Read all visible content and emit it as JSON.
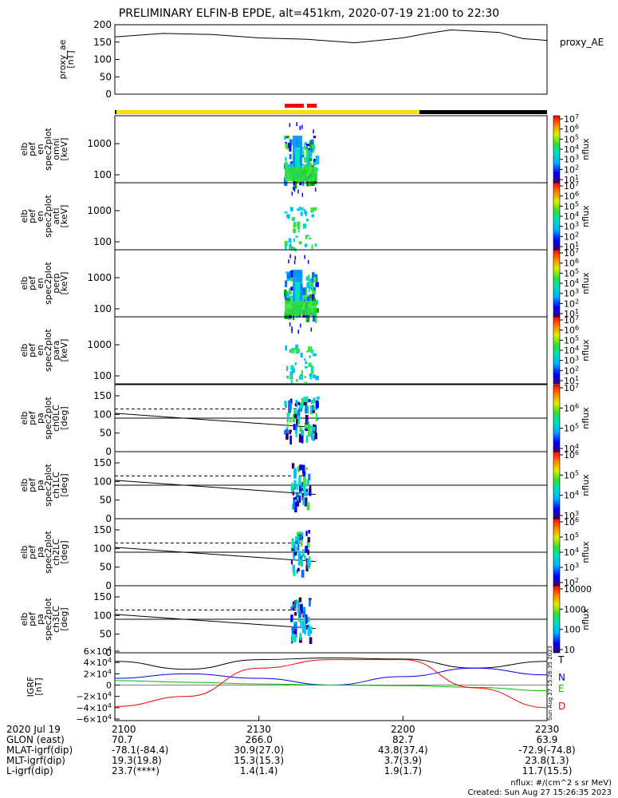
{
  "title": "PRELIMINARY ELFIN-B EPDE, alt=451km, 2020-07-19 21:00 to 22:30",
  "footer": {
    "units": "nflux: #/(cm^2 s sr MeV)",
    "created": "Created: Sun Aug 27 15:26:35 2023"
  },
  "side_stamp": "Sun Aug 27 15:26:35 2023",
  "panels": {
    "proxy_ae": {
      "ylabel_lines": [
        "proxy_ae",
        "[nT]"
      ],
      "yticks": [
        "200",
        "150",
        "100",
        "50",
        "0"
      ],
      "ylim": [
        0,
        200
      ],
      "legend": "proxy_AE"
    },
    "spectra": [
      {
        "ylabel_lines": [
          "elb",
          "pef",
          "en",
          "spec2plot",
          "omni",
          "[keV]"
        ],
        "yticks": [
          "1000",
          "100"
        ],
        "cbar_ticks": [
          "10^7",
          "10^6",
          "10^5",
          "10^4",
          "10^3",
          "10^2",
          "10^1"
        ],
        "cbar_label": "nflux"
      },
      {
        "ylabel_lines": [
          "elb",
          "pef",
          "en",
          "spec2plot",
          "anti",
          "[keV]"
        ],
        "yticks": [
          "1000",
          "100"
        ],
        "cbar_ticks": [
          "10^7",
          "10^6",
          "10^5",
          "10^4",
          "10^3",
          "10^2",
          "10^1"
        ],
        "cbar_label": "nflux"
      },
      {
        "ylabel_lines": [
          "elb",
          "pef",
          "en",
          "spec2plot",
          "perp",
          "[keV]"
        ],
        "yticks": [
          "1000",
          "100"
        ],
        "cbar_ticks": [
          "10^7",
          "10^6",
          "10^5",
          "10^4",
          "10^3",
          "10^2",
          "10^1"
        ],
        "cbar_label": "nflux"
      },
      {
        "ylabel_lines": [
          "elb",
          "pef",
          "en",
          "spec2plot",
          "para",
          "[keV]"
        ],
        "yticks": [
          "1000",
          "100"
        ],
        "cbar_ticks": [
          "10^7",
          "10^6",
          "10^5",
          "10^4",
          "10^3",
          "10^2",
          "10^1"
        ],
        "cbar_label": "nflux"
      }
    ],
    "pitch": [
      {
        "ylabel_lines": [
          "elb",
          "pef",
          "pa",
          "spec2plot",
          "ch0LC",
          "[deg]"
        ],
        "yticks": [
          "150",
          "100",
          "50",
          "0"
        ],
        "cbar_ticks": [
          "10^7",
          "10^6",
          "10^5",
          "10^4"
        ],
        "cbar_label": "nflux"
      },
      {
        "ylabel_lines": [
          "elb",
          "pef",
          "pa",
          "spec2plot",
          "ch1LC",
          "[deg]"
        ],
        "yticks": [
          "150",
          "100",
          "50",
          "0"
        ],
        "cbar_ticks": [
          "10^6",
          "10^5",
          "10^4",
          "10^3"
        ],
        "cbar_label": "nflux"
      },
      {
        "ylabel_lines": [
          "elb",
          "pef",
          "pa",
          "spec2plot",
          "ch2LC",
          "[deg]"
        ],
        "yticks": [
          "150",
          "100",
          "50",
          "0"
        ],
        "cbar_ticks": [
          "10^6",
          "10^5",
          "10^4",
          "10^3",
          "10^2"
        ],
        "cbar_label": "nflux"
      },
      {
        "ylabel_lines": [
          "elb",
          "pef",
          "pa",
          "spec2plot",
          "ch3LC",
          "[deg]"
        ],
        "yticks": [
          "150",
          "100",
          "50",
          "0"
        ],
        "cbar_ticks": [
          "10000",
          "1000",
          "100",
          "10"
        ],
        "cbar_label": "nflux"
      }
    ],
    "igrf": {
      "ylabel_lines": [
        "IGRF",
        "[nT]"
      ],
      "yticks": [
        "6×10^4",
        "4×10^4",
        "2×10^4",
        "0",
        "−2×10^4",
        "−4×10^4",
        "−6×10^4"
      ],
      "legend": [
        {
          "label": "T",
          "color": "#000000"
        },
        {
          "label": "N",
          "color": "#0000ff"
        },
        {
          "label": "E",
          "color": "#00c000"
        },
        {
          "label": "D",
          "color": "#ff0000"
        }
      ]
    }
  },
  "chart_data": [
    {
      "type": "line",
      "title": "proxy_AE",
      "x": [
        "21:00",
        "21:10",
        "21:20",
        "21:30",
        "21:40",
        "21:50",
        "22:00",
        "22:05",
        "22:10",
        "22:20",
        "22:25",
        "22:30"
      ],
      "series": [
        {
          "name": "proxy_AE",
          "values": [
            165,
            175,
            172,
            162,
            158,
            148,
            162,
            175,
            185,
            178,
            160,
            155
          ]
        }
      ],
      "ylim": [
        0,
        200
      ]
    },
    {
      "type": "line",
      "title": "IGRF",
      "x": [
        "21:00",
        "21:15",
        "21:30",
        "21:45",
        "22:00",
        "22:15",
        "22:30"
      ],
      "series": [
        {
          "name": "T",
          "values": [
            42000,
            28000,
            45000,
            48000,
            46000,
            30000,
            42000
          ]
        },
        {
          "name": "N",
          "values": [
            12000,
            20000,
            12000,
            0,
            15000,
            30000,
            18000
          ]
        },
        {
          "name": "E",
          "values": [
            8000,
            5000,
            2000,
            0,
            -1000,
            -4000,
            -10000
          ]
        },
        {
          "name": "D",
          "values": [
            -38000,
            -20000,
            30000,
            45000,
            45000,
            -5000,
            -40000
          ]
        }
      ],
      "ylim": [
        -60000,
        60000
      ]
    }
  ],
  "xaxis": {
    "rows": [
      {
        "label": "2020 Jul 19",
        "values": [
          "2100",
          "2130",
          "2200",
          "2230"
        ]
      },
      {
        "label": "GLON (east)",
        "values": [
          "70.7",
          "266.0",
          "82.7",
          "63.9"
        ]
      },
      {
        "label": "MLAT-igrf(dip)",
        "values": [
          "-78.1(-84.4)",
          "30.9(27.0)",
          "43.8(37.4)",
          "-72.9(-74.8)"
        ]
      },
      {
        "label": "MLT-igrf(dip)",
        "values": [
          "19.3(19.8)",
          "15.3(15.3)",
          "3.7(3.9)",
          "23.8(1.3)"
        ]
      },
      {
        "label": "L-igrf(dip)",
        "values": [
          "23.7(****)",
          "1.4(1.4)",
          "1.9(1.7)",
          "11.7(15.5)"
        ]
      }
    ]
  },
  "colors": {
    "sunlit_bar": "#ffdd00",
    "eclipse_bar": "#000000",
    "science_zone": "#ff0000"
  }
}
